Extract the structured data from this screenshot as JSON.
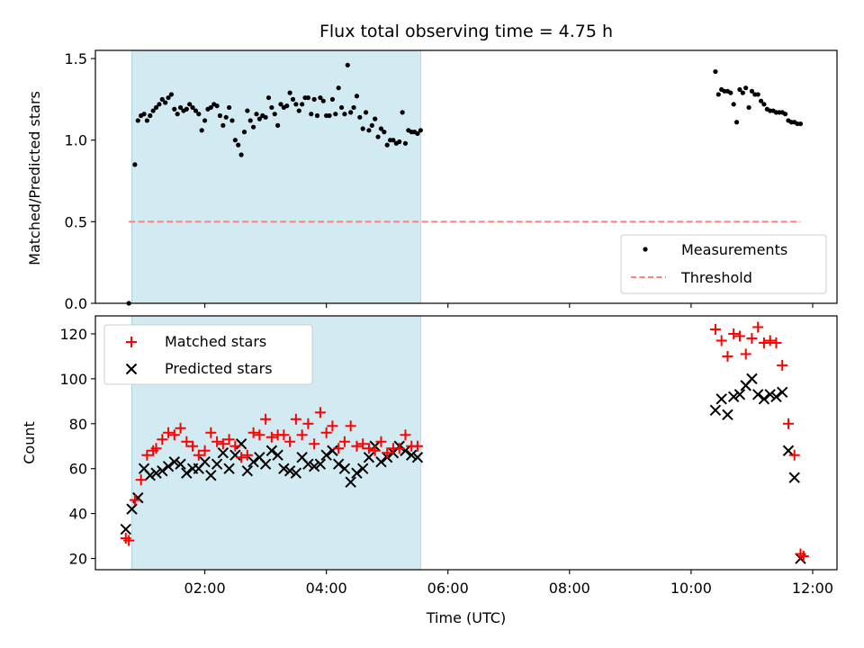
{
  "title": "Flux total observing time = 4.75 h",
  "xlabel": "Time (UTC)",
  "x_ticks": [
    "02:00",
    "04:00",
    "06:00",
    "08:00",
    "10:00",
    "12:00"
  ],
  "colors": {
    "measurements": "#000000",
    "threshold": "#ff7f7f",
    "matched": "#ff0000",
    "predicted": "#000000",
    "shade": "#add8e6"
  },
  "chart_data": [
    {
      "type": "scatter",
      "ylabel": "Matched/Predicted stars",
      "ylim": [
        0,
        1.55
      ],
      "y_ticks": [
        "0.0",
        "0.5",
        "1.0",
        "1.5"
      ],
      "xlim": [
        "00:12",
        "12:24"
      ],
      "shaded_interval": [
        "00:48",
        "05:33"
      ],
      "legend_placement": "lower-right",
      "legend": [
        {
          "label": "Measurements",
          "marker": "dot"
        },
        {
          "label": "Threshold",
          "marker": "dashed-line"
        }
      ],
      "threshold": {
        "y": 0.5,
        "x": [
          "00:45",
          "11:48"
        ]
      },
      "series": [
        {
          "name": "Measurements",
          "x": [
            "00:45",
            "00:51",
            "00:54",
            "00:57",
            "01:00",
            "01:03",
            "01:06",
            "01:09",
            "01:12",
            "01:15",
            "01:18",
            "01:21",
            "01:24",
            "01:27",
            "01:30",
            "01:33",
            "01:36",
            "01:39",
            "01:42",
            "01:45",
            "01:48",
            "01:51",
            "01:54",
            "01:57",
            "02:00",
            "02:03",
            "02:06",
            "02:09",
            "02:12",
            "02:15",
            "02:18",
            "02:21",
            "02:24",
            "02:27",
            "02:30",
            "02:33",
            "02:36",
            "02:39",
            "02:42",
            "02:45",
            "02:48",
            "02:51",
            "02:54",
            "02:57",
            "03:00",
            "03:03",
            "03:06",
            "03:09",
            "03:12",
            "03:15",
            "03:18",
            "03:21",
            "03:24",
            "03:27",
            "03:30",
            "03:33",
            "03:36",
            "03:39",
            "03:42",
            "03:45",
            "03:48",
            "03:51",
            "03:54",
            "03:57",
            "04:00",
            "04:03",
            "04:06",
            "04:09",
            "04:12",
            "04:15",
            "04:18",
            "04:21",
            "04:24",
            "04:27",
            "04:30",
            "04:33",
            "04:36",
            "04:39",
            "04:42",
            "04:45",
            "04:48",
            "04:51",
            "04:54",
            "04:57",
            "05:00",
            "05:03",
            "05:06",
            "05:09",
            "05:12",
            "05:15",
            "05:18",
            "05:21",
            "05:24",
            "05:27",
            "05:30",
            "05:33",
            "10:24",
            "10:27",
            "10:30",
            "10:33",
            "10:36",
            "10:39",
            "10:42",
            "10:45",
            "10:48",
            "10:51",
            "10:54",
            "10:57",
            "11:00",
            "11:03",
            "11:06",
            "11:09",
            "11:12",
            "11:15",
            "11:18",
            "11:21",
            "11:24",
            "11:27",
            "11:30",
            "11:33",
            "11:36",
            "11:39",
            "11:42",
            "11:45",
            "11:48"
          ],
          "y": [
            0.0,
            0.85,
            1.12,
            1.15,
            1.16,
            1.12,
            1.15,
            1.18,
            1.2,
            1.22,
            1.25,
            1.23,
            1.26,
            1.28,
            1.19,
            1.16,
            1.2,
            1.18,
            1.19,
            1.22,
            1.2,
            1.18,
            1.16,
            1.06,
            1.12,
            1.19,
            1.2,
            1.22,
            1.21,
            1.15,
            1.09,
            1.14,
            1.2,
            1.12,
            1.0,
            0.97,
            0.91,
            1.05,
            1.18,
            1.12,
            1.08,
            1.16,
            1.13,
            1.15,
            1.14,
            1.26,
            1.2,
            1.16,
            1.09,
            1.22,
            1.2,
            1.21,
            1.29,
            1.25,
            1.22,
            1.18,
            1.22,
            1.26,
            1.26,
            1.16,
            1.25,
            1.15,
            1.26,
            1.24,
            1.15,
            1.15,
            1.25,
            1.16,
            1.32,
            1.2,
            1.16,
            1.46,
            1.17,
            1.2,
            1.27,
            1.14,
            1.07,
            1.17,
            1.06,
            1.09,
            1.13,
            1.02,
            1.07,
            1.05,
            0.97,
            1.0,
            1.0,
            0.98,
            0.99,
            1.17,
            0.98,
            1.06,
            1.05,
            1.05,
            1.04,
            1.06,
            1.42,
            1.28,
            1.31,
            1.3,
            1.3,
            1.29,
            1.22,
            1.11,
            1.31,
            1.29,
            1.32,
            1.2,
            1.3,
            1.28,
            1.28,
            1.24,
            1.22,
            1.19,
            1.18,
            1.18,
            1.17,
            1.17,
            1.17,
            1.16,
            1.12,
            1.11,
            1.11,
            1.1,
            1.1
          ]
        }
      ]
    },
    {
      "type": "scatter",
      "ylabel": "Count",
      "ylim": [
        15,
        128
      ],
      "y_ticks": [
        "20",
        "40",
        "60",
        "80",
        "100",
        "120"
      ],
      "xlim": [
        "00:12",
        "12:24"
      ],
      "shaded_interval": [
        "00:48",
        "05:33"
      ],
      "legend_placement": "upper-left",
      "legend": [
        {
          "label": "Matched stars",
          "marker": "plus"
        },
        {
          "label": "Predicted stars",
          "marker": "x"
        }
      ],
      "series": [
        {
          "name": "Matched stars",
          "x": [
            "00:42",
            "00:45",
            "00:51",
            "00:57",
            "01:03",
            "01:09",
            "01:12",
            "01:18",
            "01:24",
            "01:30",
            "01:36",
            "01:42",
            "01:48",
            "01:54",
            "02:00",
            "02:06",
            "02:12",
            "02:18",
            "02:24",
            "02:30",
            "02:36",
            "02:42",
            "02:48",
            "02:54",
            "03:00",
            "03:06",
            "03:12",
            "03:18",
            "03:24",
            "03:30",
            "03:36",
            "03:42",
            "03:48",
            "03:54",
            "04:00",
            "04:06",
            "04:12",
            "04:18",
            "04:24",
            "04:30",
            "04:36",
            "04:42",
            "04:48",
            "04:54",
            "05:00",
            "05:06",
            "05:12",
            "05:18",
            "05:24",
            "05:30",
            "10:24",
            "10:30",
            "10:36",
            "10:42",
            "10:48",
            "10:54",
            "11:00",
            "11:06",
            "11:12",
            "11:18",
            "11:24",
            "11:30",
            "11:36",
            "11:42",
            "11:48",
            "11:51"
          ],
          "y": [
            29,
            28,
            46,
            55,
            66,
            68,
            69,
            73,
            76,
            75,
            78,
            72,
            70,
            66,
            68,
            76,
            72,
            71,
            73,
            70,
            65,
            66,
            76,
            75,
            82,
            74,
            75,
            75,
            72,
            82,
            75,
            80,
            71,
            85,
            76,
            79,
            69,
            72,
            79,
            70,
            71,
            69,
            68,
            72,
            67,
            69,
            69,
            75,
            70,
            70,
            122,
            117,
            110,
            120,
            119,
            111,
            118,
            123,
            116,
            117,
            116,
            106,
            80,
            66,
            22,
            21
          ]
        },
        {
          "name": "Predicted stars",
          "x": [
            "00:42",
            "00:48",
            "00:54",
            "01:00",
            "01:06",
            "01:12",
            "01:18",
            "01:24",
            "01:30",
            "01:36",
            "01:42",
            "01:48",
            "01:54",
            "02:00",
            "02:06",
            "02:12",
            "02:18",
            "02:24",
            "02:30",
            "02:36",
            "02:42",
            "02:48",
            "02:54",
            "03:00",
            "03:06",
            "03:12",
            "03:18",
            "03:24",
            "03:30",
            "03:36",
            "03:42",
            "03:48",
            "03:54",
            "04:00",
            "04:06",
            "04:12",
            "04:18",
            "04:24",
            "04:30",
            "04:36",
            "04:42",
            "04:48",
            "04:54",
            "05:00",
            "05:06",
            "05:12",
            "05:18",
            "05:24",
            "05:30",
            "10:24",
            "10:30",
            "10:36",
            "10:42",
            "10:48",
            "10:54",
            "11:00",
            "11:06",
            "11:12",
            "11:18",
            "11:24",
            "11:30",
            "11:36",
            "11:42",
            "11:48"
          ],
          "y": [
            33,
            42,
            47,
            60,
            57,
            58,
            59,
            61,
            63,
            62,
            58,
            60,
            60,
            63,
            57,
            62,
            67,
            60,
            66,
            71,
            59,
            63,
            65,
            62,
            68,
            66,
            60,
            59,
            58,
            65,
            62,
            61,
            62,
            66,
            68,
            62,
            60,
            54,
            58,
            60,
            65,
            70,
            63,
            65,
            67,
            70,
            68,
            66,
            65,
            86,
            91,
            84,
            92,
            93,
            97,
            100,
            93,
            91,
            93,
            92,
            94,
            68,
            56,
            20
          ]
        }
      ]
    }
  ]
}
